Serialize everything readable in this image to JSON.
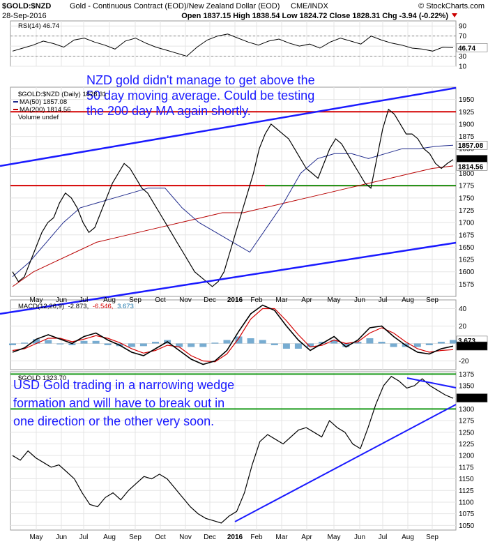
{
  "header": {
    "symbol": "$GOLD:$NZD",
    "description": "Gold - Continuous Contract (EOD)/New Zealand Dollar (EOD)",
    "exchange": "CME/INDX",
    "watermark": "© StockCharts.com",
    "date": "28-Sep-2016",
    "ohlc": "Open 1837.15  High 1838.54  Low 1824.72  Close 1828.31  Chg -3.94 (-0.22%)"
  },
  "annotations": {
    "nzd_gold": [
      "NZD gold didn't manage to get above the",
      "50 day moving average. Could be testing",
      "the 200 day MA again shortly."
    ],
    "usd_gold": [
      "USD Gold trading in a narrowing wedge",
      "formation and will have to break out in",
      "one direction or the other very soon."
    ]
  },
  "chart_data": [
    {
      "type": "line",
      "panel": "rsi",
      "legend": "RSI(14) 46.74",
      "value_tag": "46.74",
      "ylim": [
        10,
        100
      ],
      "yticks": [
        10,
        30,
        50,
        70,
        90
      ],
      "levels": [
        30,
        70
      ],
      "x_labels": [
        "May",
        "Jun",
        "Jul",
        "Aug",
        "Sep",
        "Oct",
        "Nov",
        "Dec",
        "2016",
        "Feb",
        "Mar",
        "Apr",
        "May",
        "Jun",
        "Jul",
        "Aug",
        "Sep"
      ],
      "values": [
        40,
        46,
        52,
        60,
        55,
        48,
        62,
        66,
        58,
        52,
        44,
        60,
        66,
        56,
        48,
        42,
        36,
        30,
        48,
        62,
        70,
        74,
        66,
        58,
        52,
        60,
        64,
        56,
        50,
        54,
        46,
        58,
        66,
        60,
        54,
        70,
        62,
        56,
        52,
        46,
        44,
        40,
        48,
        47
      ]
    },
    {
      "type": "line",
      "panel": "price_nzd",
      "legend": "$GOLD:$NZD (Daily) 1828.31",
      "ylim": [
        1550,
        1975
      ],
      "yticks": [
        1575,
        1600,
        1625,
        1650,
        1675,
        1700,
        1725,
        1750,
        1775,
        1800,
        1825,
        1850,
        1875,
        1900,
        1925,
        1950
      ],
      "x_labels": [
        "May",
        "Jun",
        "Jul",
        "Aug",
        "Sep",
        "Oct",
        "Nov",
        "Dec",
        "2016",
        "Feb",
        "Mar",
        "Apr",
        "May",
        "Jun",
        "Jul",
        "Aug",
        "Sep"
      ],
      "series": [
        {
          "name": "$GOLD:$NZD",
          "color": "#000000",
          "values": [
            1600,
            1580,
            1590,
            1620,
            1650,
            1680,
            1700,
            1710,
            1740,
            1760,
            1750,
            1730,
            1700,
            1680,
            1690,
            1720,
            1750,
            1780,
            1800,
            1820,
            1810,
            1790,
            1770,
            1760,
            1740,
            1720,
            1700,
            1680,
            1660,
            1640,
            1620,
            1600,
            1590,
            1580,
            1570,
            1580,
            1600,
            1640,
            1680,
            1720,
            1760,
            1800,
            1850,
            1880,
            1900,
            1890,
            1880,
            1870,
            1850,
            1830,
            1810,
            1800,
            1790,
            1820,
            1850,
            1870,
            1860,
            1840,
            1820,
            1800,
            1780,
            1770,
            1830,
            1890,
            1930,
            1920,
            1900,
            1880,
            1880,
            1870,
            1850,
            1840,
            1820,
            1810,
            1820,
            1828
          ]
        },
        {
          "name": "MA(50) 1857.08",
          "color": "#1f2a8c",
          "values": [
            1590,
            1620,
            1660,
            1700,
            1730,
            1740,
            1750,
            1760,
            1770,
            1770,
            1730,
            1700,
            1680,
            1660,
            1640,
            1690,
            1740,
            1800,
            1830,
            1840,
            1840,
            1830,
            1840,
            1850,
            1850,
            1855,
            1857
          ]
        },
        {
          "name": "MA(200) 1814.56",
          "color": "#b80000",
          "values": [
            1570,
            1600,
            1620,
            1640,
            1660,
            1670,
            1680,
            1690,
            1700,
            1710,
            1720,
            1720,
            1730,
            1740,
            1750,
            1760,
            1770,
            1780,
            1790,
            1800,
            1810,
            1815
          ]
        }
      ],
      "volume_legend": "Volume undef",
      "horizontal_levels": [
        1925,
        1775
      ],
      "value_tags": [
        "1857.08",
        "1828.31",
        "1814.56"
      ]
    },
    {
      "type": "line",
      "panel": "macd",
      "legend": [
        "MACD(12,26,9)",
        "-2.873,",
        "-6.546,",
        "3.673"
      ],
      "ylim": [
        -30,
        50
      ],
      "yticks": [
        -20,
        0,
        20,
        40
      ],
      "x_labels": [
        "May",
        "Jun",
        "Jul",
        "Aug",
        "Sep",
        "Oct",
        "Nov",
        "Dec",
        "2016",
        "Feb",
        "Mar",
        "Apr",
        "May",
        "Jun",
        "Jul",
        "Aug",
        "Sep"
      ],
      "series": [
        {
          "name": "MACD",
          "color": "#000000",
          "values": [
            -10,
            -5,
            5,
            10,
            5,
            0,
            8,
            12,
            4,
            -2,
            -10,
            -14,
            -6,
            2,
            -8,
            -18,
            -24,
            -20,
            -8,
            14,
            34,
            44,
            38,
            20,
            4,
            -8,
            0,
            8,
            -4,
            4,
            18,
            20,
            8,
            -2,
            -10,
            -12,
            -6,
            -3
          ]
        },
        {
          "name": "Signal",
          "color": "#d40000",
          "values": [
            -8,
            -6,
            0,
            6,
            6,
            2,
            5,
            9,
            6,
            1,
            -6,
            -11,
            -8,
            -2,
            -4,
            -14,
            -20,
            -21,
            -12,
            6,
            28,
            40,
            40,
            26,
            10,
            -4,
            -2,
            4,
            0,
            2,
            12,
            18,
            12,
            2,
            -6,
            -10,
            -8,
            -7
          ]
        }
      ],
      "value_tags": [
        "3.673",
        "-2.873",
        "-6.546"
      ]
    },
    {
      "type": "line",
      "panel": "price_usd",
      "legend": "$GOLD 1323.70",
      "ylim": [
        1040,
        1380
      ],
      "yticks": [
        1050,
        1075,
        1100,
        1125,
        1150,
        1175,
        1200,
        1225,
        1250,
        1275,
        1300,
        1325,
        1350,
        1375
      ],
      "x_labels": [
        "May",
        "Jun",
        "Jul",
        "Aug",
        "Sep",
        "Oct",
        "Nov",
        "Dec",
        "2016",
        "Feb",
        "Mar",
        "Apr",
        "May",
        "Jun",
        "Jul",
        "Aug",
        "Sep"
      ],
      "series": [
        {
          "name": "$GOLD",
          "color": "#000000",
          "values": [
            1200,
            1190,
            1210,
            1195,
            1185,
            1175,
            1180,
            1165,
            1150,
            1120,
            1095,
            1090,
            1110,
            1120,
            1105,
            1125,
            1140,
            1155,
            1150,
            1160,
            1150,
            1130,
            1110,
            1090,
            1075,
            1065,
            1060,
            1055,
            1070,
            1080,
            1120,
            1180,
            1230,
            1245,
            1235,
            1225,
            1240,
            1255,
            1260,
            1250,
            1240,
            1275,
            1260,
            1250,
            1225,
            1215,
            1260,
            1310,
            1350,
            1370,
            1360,
            1345,
            1350,
            1365,
            1350,
            1340,
            1330,
            1323
          ]
        }
      ],
      "value_tags": [
        "1323.70"
      ]
    }
  ]
}
